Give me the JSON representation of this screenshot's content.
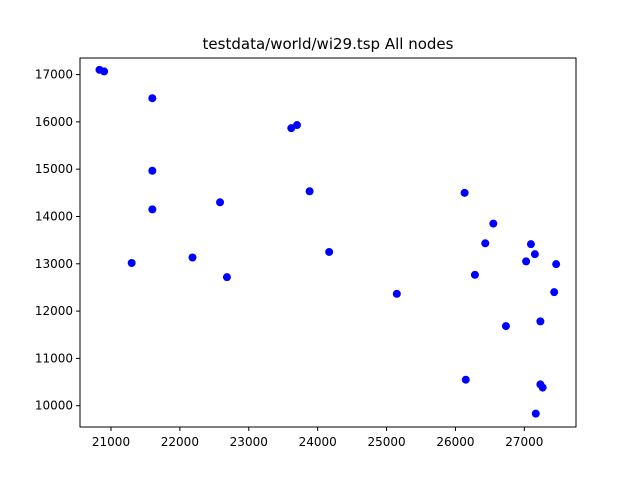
{
  "chart_data": {
    "type": "scatter",
    "title": "testdata/world/wi29.tsp All nodes",
    "xlabel": "",
    "ylabel": "",
    "xlim": [
      20550,
      27750
    ],
    "ylim": [
      9550,
      17350
    ],
    "xticks": [
      21000,
      22000,
      23000,
      24000,
      25000,
      26000,
      27000
    ],
    "yticks": [
      10000,
      11000,
      12000,
      13000,
      14000,
      15000,
      16000,
      17000
    ],
    "grid": false,
    "legend": "none",
    "marker_color": "#0000ff",
    "series": [
      {
        "points": [
          [
            20833,
            17100
          ],
          [
            20900,
            17067
          ],
          [
            21300,
            13017
          ],
          [
            21600,
            14150
          ],
          [
            21600,
            14967
          ],
          [
            21600,
            16500
          ],
          [
            22183,
            13133
          ],
          [
            22583,
            14300
          ],
          [
            22683,
            12717
          ],
          [
            23617,
            15867
          ],
          [
            23700,
            15933
          ],
          [
            23883,
            14533
          ],
          [
            24167,
            13250
          ],
          [
            25149,
            12365
          ],
          [
            26133,
            14500
          ],
          [
            26150,
            10550
          ],
          [
            26283,
            12766
          ],
          [
            26433,
            13433
          ],
          [
            26550,
            13850
          ],
          [
            26733,
            11683
          ],
          [
            27026,
            13051
          ],
          [
            27096,
            13415
          ],
          [
            27153,
            13203
          ],
          [
            27166,
            9833
          ],
          [
            27233,
            10450
          ],
          [
            27233,
            11783
          ],
          [
            27266,
            10383
          ],
          [
            27433,
            12400
          ],
          [
            27462,
            12992
          ]
        ]
      }
    ]
  }
}
